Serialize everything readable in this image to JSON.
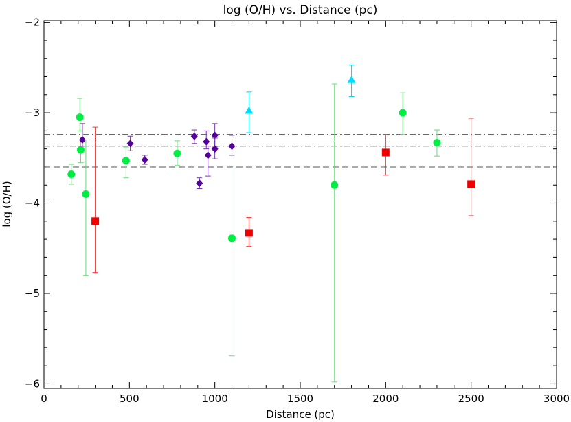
{
  "chart_data": {
    "type": "scatter",
    "title": "log (O/H) vs. Distance (pc)",
    "xlabel": "Distance (pc)",
    "ylabel": "log (O/H)",
    "xlim": [
      0,
      3000
    ],
    "ylim": [
      -6.05,
      -1.98
    ],
    "xticks": [
      0,
      500,
      1000,
      1500,
      2000,
      2500,
      3000
    ],
    "xtick_labels": [
      "0",
      "500",
      "1000",
      "1500",
      "2000",
      "2500",
      "3000"
    ],
    "yticks": [
      -6,
      -5,
      -4,
      -3,
      -2
    ],
    "ytick_labels": [
      "−6",
      "−5",
      "−4",
      "−3",
      "−2"
    ],
    "grid": false,
    "hlines": [
      {
        "y": -3.3,
        "style": "solid",
        "color": "#555555"
      },
      {
        "y": -3.24,
        "style": "dashdot",
        "color": "#555555"
      },
      {
        "y": -3.37,
        "style": "dashdot",
        "color": "#555555"
      },
      {
        "y": -3.6,
        "style": "dashed",
        "color": "#555555"
      }
    ],
    "series": [
      {
        "marker": "circle",
        "color": "#00ee44",
        "errcolor": "#66dd77",
        "points": [
          {
            "x": 160,
            "y": -3.68,
            "lo": -3.79,
            "hi": -3.57
          },
          {
            "x": 210,
            "y": -3.05,
            "lo": -3.2,
            "hi": -2.84
          },
          {
            "x": 215,
            "y": -3.41,
            "lo": -3.55,
            "hi": -3.27
          },
          {
            "x": 245,
            "y": -3.9,
            "lo": -4.8,
            "hi": -3.3
          },
          {
            "x": 480,
            "y": -3.53,
            "lo": -3.72,
            "hi": -3.38
          },
          {
            "x": 780,
            "y": -3.45,
            "lo": -3.58,
            "hi": -3.31
          },
          {
            "x": 1100,
            "y": -4.39,
            "lo": -5.69,
            "hi": -3.59
          },
          {
            "x": 1700,
            "y": -3.8,
            "lo": -5.98,
            "hi": -2.68
          },
          {
            "x": 2100,
            "y": -3.0,
            "lo": -3.24,
            "hi": -2.78
          },
          {
            "x": 2300,
            "y": -3.33,
            "lo": -3.48,
            "hi": -3.19
          }
        ]
      },
      {
        "marker": "diamond",
        "color": "#550099",
        "errcolor": "#7733aa",
        "points": [
          {
            "x": 225,
            "y": -3.3,
            "lo": -3.37,
            "hi": -3.12
          },
          {
            "x": 505,
            "y": -3.34,
            "lo": -3.42,
            "hi": -3.26
          },
          {
            "x": 590,
            "y": -3.52,
            "lo": -3.57,
            "hi": -3.47
          },
          {
            "x": 880,
            "y": -3.26,
            "lo": -3.34,
            "hi": -3.19
          },
          {
            "x": 910,
            "y": -3.78,
            "lo": -3.84,
            "hi": -3.72
          },
          {
            "x": 950,
            "y": -3.32,
            "lo": -3.4,
            "hi": -3.2
          },
          {
            "x": 960,
            "y": -3.47,
            "lo": -3.7,
            "hi": -3.37
          },
          {
            "x": 1000,
            "y": -3.25,
            "lo": -3.38,
            "hi": -3.12
          },
          {
            "x": 1000,
            "y": -3.4,
            "lo": -3.51,
            "hi": -3.28
          },
          {
            "x": 1100,
            "y": -3.37,
            "lo": -3.47,
            "hi": -3.25
          }
        ]
      },
      {
        "marker": "triangle",
        "color": "#00ddff",
        "errcolor": "#00ccee",
        "points": [
          {
            "x": 1200,
            "y": -2.98,
            "lo": -3.22,
            "hi": -2.77
          },
          {
            "x": 1800,
            "y": -2.64,
            "lo": -2.82,
            "hi": -2.47
          }
        ]
      },
      {
        "marker": "square",
        "color": "#ee0000",
        "errcolor": "#ee3333",
        "points": [
          {
            "x": 300,
            "y": -4.2,
            "lo": -4.77,
            "hi": -3.16
          },
          {
            "x": 1200,
            "y": -4.33,
            "lo": -4.48,
            "hi": -4.16
          },
          {
            "x": 2000,
            "y": -3.44,
            "lo": -3.69,
            "hi": -3.24
          },
          {
            "x": 2500,
            "y": -3.79,
            "lo": -4.14,
            "hi": -3.06
          }
        ]
      }
    ]
  }
}
